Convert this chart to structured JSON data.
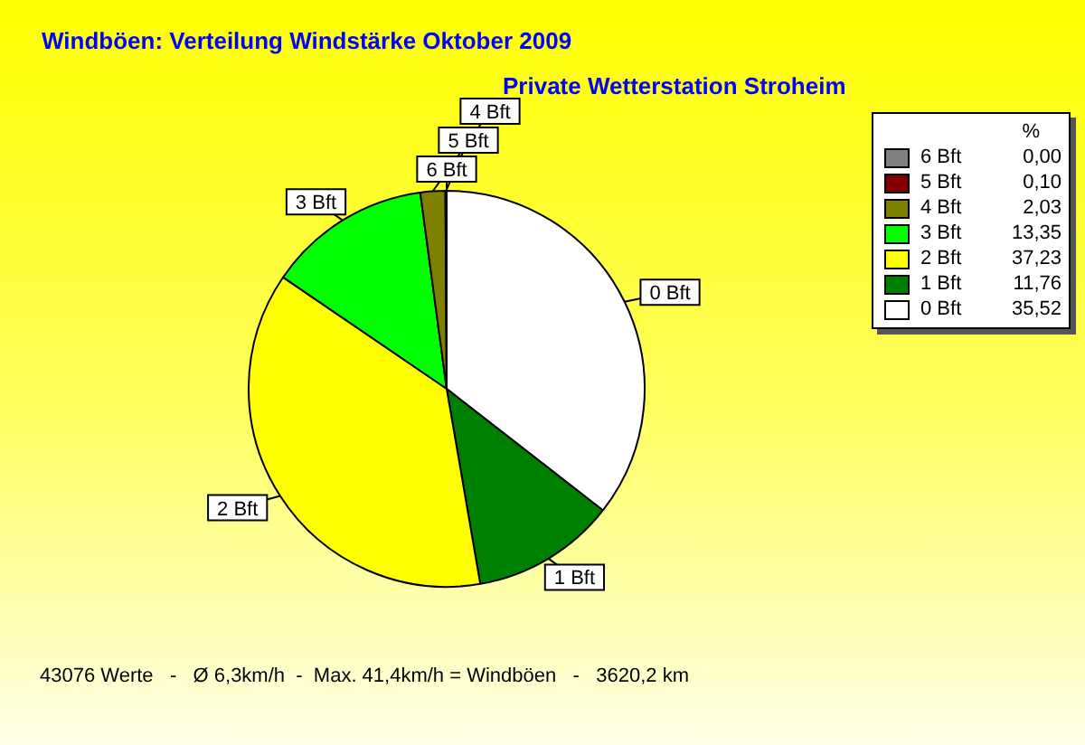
{
  "chart_data": {
    "type": "pie",
    "title": "Windböen: Verteilung Windstärke  Oktober 2009",
    "subtitle": "Private Wetterstation Stroheim",
    "legend_title": "%",
    "legend": "top right",
    "categories": [
      "6 Bft",
      "5 Bft",
      "4 Bft",
      "3 Bft",
      "2 Bft",
      "1 Bft",
      "0 Bft"
    ],
    "values": [
      0.0,
      0.1,
      2.03,
      13.35,
      37.23,
      11.76,
      35.52
    ],
    "value_labels": [
      "0,00",
      "0,10",
      "2,03",
      "13,35",
      "37,23",
      "11,76",
      "35,52"
    ],
    "colors": [
      "#808080",
      "#800000",
      "#808000",
      "#00ff00",
      "#ffff00",
      "#008000",
      "#ffffff"
    ],
    "annotations": [
      "43076 Werte   -   Ø 6,3km/h  -  Max. 41,4km/h = Windböen   -   3620,2 km"
    ]
  }
}
